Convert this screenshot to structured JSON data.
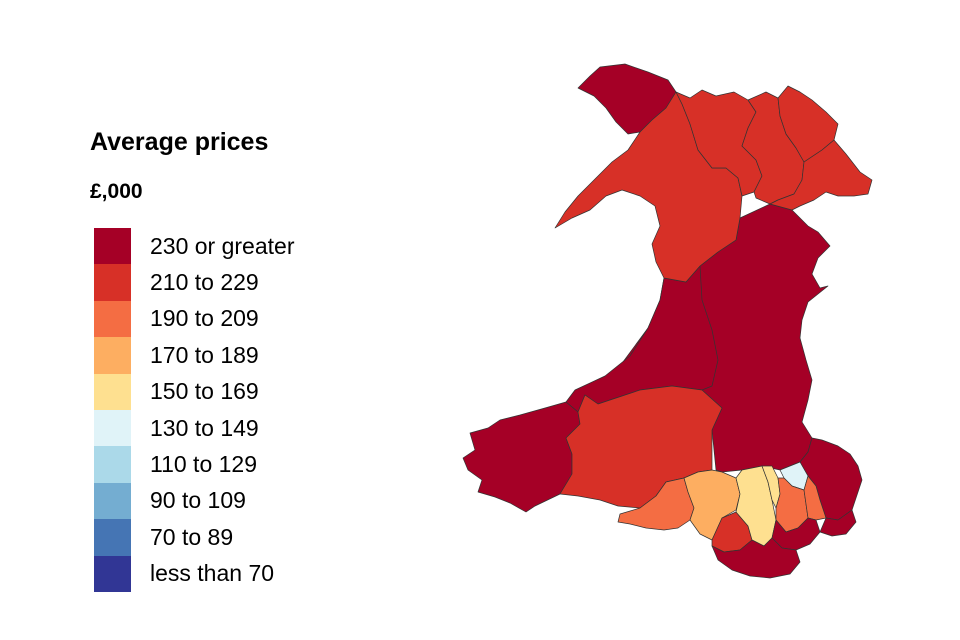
{
  "legend": {
    "title": "Average prices",
    "unit": "£,000",
    "bands": [
      {
        "label": "230 or greater",
        "color": "#a50026"
      },
      {
        "label": "210 to 229",
        "color": "#d73027"
      },
      {
        "label": "190 to 209",
        "color": "#f46d43"
      },
      {
        "label": "170 to 189",
        "color": "#fdae61"
      },
      {
        "label": "150 to 169",
        "color": "#fee090"
      },
      {
        "label": "130 to 149",
        "color": "#e0f3f8"
      },
      {
        "label": "110 to 129",
        "color": "#abd9e9"
      },
      {
        "label": "90 to 109",
        "color": "#74add1"
      },
      {
        "label": "70 to 89",
        "color": "#4575b4"
      },
      {
        "label": "less than 70",
        "color": "#313695"
      }
    ]
  },
  "map": {
    "region": "Wales",
    "areas": [
      {
        "id": "anglesey",
        "band": 0
      },
      {
        "id": "gwynedd",
        "band": 1
      },
      {
        "id": "conwy",
        "band": 1
      },
      {
        "id": "denbighshire",
        "band": 1
      },
      {
        "id": "flintshire",
        "band": 1
      },
      {
        "id": "wrexham",
        "band": 1
      },
      {
        "id": "powys",
        "band": 0
      },
      {
        "id": "ceredigion",
        "band": 0
      },
      {
        "id": "pembrokeshire",
        "band": 0
      },
      {
        "id": "carmarthenshire",
        "band": 1
      },
      {
        "id": "swansea",
        "band": 2
      },
      {
        "id": "neath-port-talbot",
        "band": 3
      },
      {
        "id": "bridgend",
        "band": 1
      },
      {
        "id": "rhondda-cynon-taf",
        "band": 4
      },
      {
        "id": "merthyr-tydfil",
        "band": 4
      },
      {
        "id": "caerphilly",
        "band": 2
      },
      {
        "id": "blaenau-gwent",
        "band": 5
      },
      {
        "id": "torfaen",
        "band": 2
      },
      {
        "id": "monmouthshire",
        "band": 0
      },
      {
        "id": "newport",
        "band": 0
      },
      {
        "id": "cardiff",
        "band": 0
      },
      {
        "id": "vale-of-glamorgan",
        "band": 0
      }
    ]
  }
}
